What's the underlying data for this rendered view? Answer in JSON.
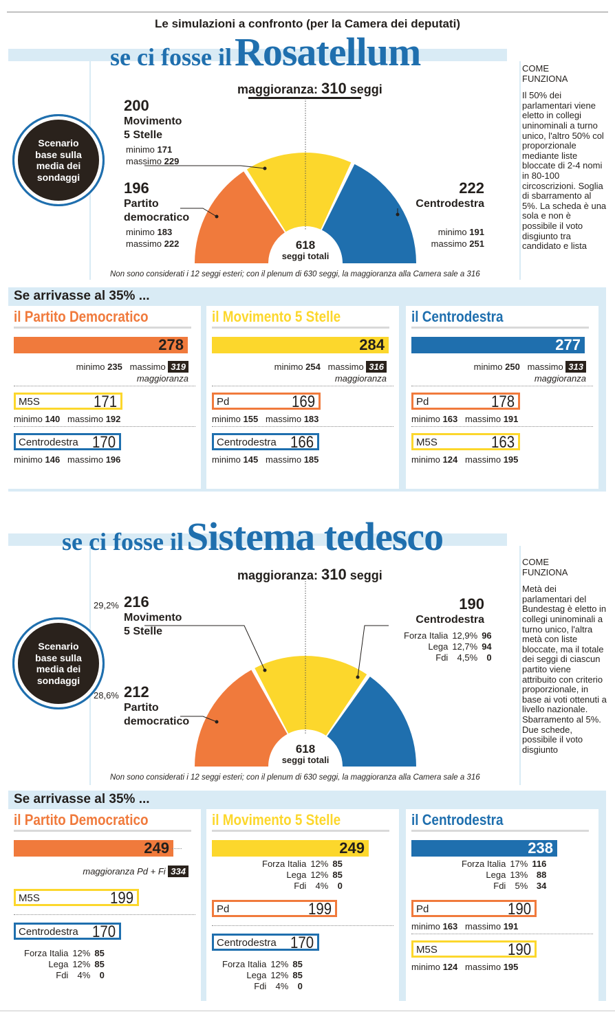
{
  "supertitle": "Le simulazioni a confronto (per la Camera dei deputati)",
  "colors": {
    "pd": "#f07a3c",
    "m5s": "#fcd72c",
    "cd": "#1f6fae",
    "band": "#d9ebf5",
    "dark": "#2a221c"
  },
  "rosatellum": {
    "title_small": "se ci fosse il",
    "title_big": "Rosatellum",
    "scenario": "Scenario base sulla media dei sondaggi",
    "majority_label": "maggioranza:",
    "majority_num": "310",
    "majority_unit": "seggi",
    "m5s": {
      "seats": "200",
      "name1": "Movimento",
      "name2": "5 Stelle",
      "min_label": "minimo",
      "min": "171",
      "max_label": "massimo",
      "max": "229"
    },
    "pd": {
      "seats": "196",
      "name1": "Partito",
      "name2": "democratico",
      "min_label": "minimo",
      "min": "183",
      "max_label": "massimo",
      "max": "222"
    },
    "cd": {
      "seats": "222",
      "name": "Centrodestra",
      "min_label": "minimo",
      "min": "191",
      "max_label": "massimo",
      "max": "251"
    },
    "total_num": "618",
    "total_label": "seggi totali",
    "note": "Non sono considerati i 12 seggi esteri; con il plenum di 630 seggi, la maggioranza alla Camera sale a 316",
    "come": "COME FUNZIONA",
    "side_text": "Il 50% dei parlamentari viene eletto in collegi uninominali a turno unico, l'altro 50% col proporzionale mediante liste bloccate di 2-4 nomi in 80-100 circoscrizioni. Soglia di sbarramento al 5%. La scheda è una sola e non è possibile il voto disgiunto tra candidato e lista",
    "sect_head": "Se arrivasse al 35% ...",
    "cols": [
      {
        "title": "il Partito Democratico",
        "bar": "278",
        "min": "235",
        "max": "319",
        "maj": "maggioranza",
        "o1": {
          "label": "M5S",
          "val": "171",
          "min": "140",
          "max": "192"
        },
        "o2": {
          "label": "Centrodestra",
          "val": "170",
          "min": "146",
          "max": "196"
        }
      },
      {
        "title": "il Movimento 5 Stelle",
        "bar": "284",
        "min": "254",
        "max": "316",
        "maj": "maggioranza",
        "o1": {
          "label": "Pd",
          "val": "169",
          "min": "155",
          "max": "183"
        },
        "o2": {
          "label": "Centrodestra",
          "val": "166",
          "min": "145",
          "max": "185"
        }
      },
      {
        "title": "il Centrodestra",
        "bar": "277",
        "min": "250",
        "max": "313",
        "maj": "maggioranza",
        "o1": {
          "label": "Pd",
          "val": "178",
          "min": "163",
          "max": "191"
        },
        "o2": {
          "label": "M5S",
          "val": "163",
          "min": "124",
          "max": "195"
        }
      }
    ]
  },
  "tedesco": {
    "title_small": "se ci fosse il",
    "title_big": "Sistema tedesco",
    "scenario": "Scenario base sulla media dei sondaggi",
    "majority_label": "maggioranza:",
    "majority_num": "310",
    "majority_unit": "seggi",
    "m5s": {
      "pct": "29,2%",
      "seats": "216",
      "name1": "Movimento",
      "name2": "5 Stelle"
    },
    "pd": {
      "pct": "28,6%",
      "seats": "212",
      "name1": "Partito",
      "name2": "democratico"
    },
    "cd": {
      "seats": "190",
      "name": "Centrodestra",
      "rows": [
        {
          "n": "Forza Italia",
          "p": "12,9%",
          "s": "96"
        },
        {
          "n": "Lega",
          "p": "12,7%",
          "s": "94"
        },
        {
          "n": "Fdi",
          "p": "4,5%",
          "s": "0"
        }
      ]
    },
    "total_num": "618",
    "total_label": "seggi totali",
    "note": "Non sono considerati i 12 seggi esteri; con il plenum di 630 seggi, la maggioranza alla Camera sale a 316",
    "come": "COME FUNZIONA",
    "side_text": "Metà dei parlamentari del Bundestag è eletto in collegi uninominali a turno unico, l'altra metà con liste bloccate, ma il totale dei seggi di ciascun partito viene attribuito con criterio proporzionale, in base ai voti ottenuti a livello nazionale. Sbarramento al 5%. Due schede, possibile il voto disgiunto",
    "sect_head": "Se arrivasse al 35% ...",
    "cols": [
      {
        "title": "il Partito Democratico",
        "bar": "249",
        "maj": "maggioranza Pd + Fi",
        "majval": "334",
        "o1": {
          "label": "M5S",
          "val": "199"
        },
        "o2": {
          "label": "Centrodestra",
          "val": "170"
        },
        "rows": [
          {
            "n": "Forza Italia",
            "p": "12%",
            "s": "85"
          },
          {
            "n": "Lega",
            "p": "12%",
            "s": "85"
          },
          {
            "n": "Fdi",
            "p": "4%",
            "s": "0"
          }
        ]
      },
      {
        "title": "il Movimento 5 Stelle",
        "bar": "249",
        "o1": {
          "label": "Pd",
          "val": "199"
        },
        "o2": {
          "label": "Centrodestra",
          "val": "170"
        },
        "rows": [
          {
            "n": "Forza Italia",
            "p": "12%",
            "s": "85"
          },
          {
            "n": "Lega",
            "p": "12%",
            "s": "85"
          },
          {
            "n": "Fdi",
            "p": "4%",
            "s": "0"
          }
        ]
      },
      {
        "title": "il Centrodestra",
        "bar": "238",
        "rows": [
          {
            "n": "Forza Italia",
            "p": "17%",
            "s": "116"
          },
          {
            "n": "Lega",
            "p": "13%",
            "s": "88"
          },
          {
            "n": "Fdi",
            "p": "5%",
            "s": "34"
          }
        ],
        "o1": {
          "label": "Pd",
          "val": "190",
          "min": "163",
          "max": "191"
        },
        "o2": {
          "label": "M5S",
          "val": "190",
          "min": "124",
          "max": "195"
        }
      }
    ]
  },
  "labels": {
    "minimo": "minimo",
    "massimo": "massimo"
  },
  "chart_data": [
    {
      "type": "pie",
      "title": "se ci fosse il Rosatellum",
      "categories": [
        "Partito democratico",
        "Movimento 5 Stelle",
        "Centrodestra"
      ],
      "values": [
        196,
        200,
        222
      ],
      "total": 618,
      "majority": 310
    },
    {
      "type": "pie",
      "title": "se ci fosse il Sistema tedesco",
      "categories": [
        "Partito democratico",
        "Movimento 5 Stelle",
        "Centrodestra"
      ],
      "values": [
        212,
        216,
        190
      ],
      "total": 618,
      "majority": 310
    }
  ]
}
